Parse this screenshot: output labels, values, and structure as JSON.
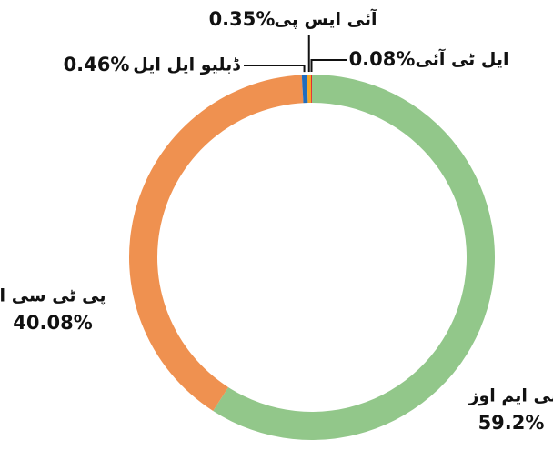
{
  "chart_data": {
    "type": "pie",
    "donut": true,
    "categories": [
      "سی ایم اوز",
      "پی ٹی سی ایل",
      "ڈبلیو ایل ایل",
      "آئی ایس پی",
      "ایل ٹی آئی"
    ],
    "values": [
      59.2,
      40.08,
      0.46,
      0.35,
      0.08
    ],
    "value_labels": [
      "59.2%",
      "40.08%",
      "0.46%",
      "0.35%",
      "0.08%"
    ],
    "colors": [
      "#92c78a",
      "#ef9150",
      "#1f6dbf",
      "#f5a528",
      "#e0242a"
    ]
  }
}
